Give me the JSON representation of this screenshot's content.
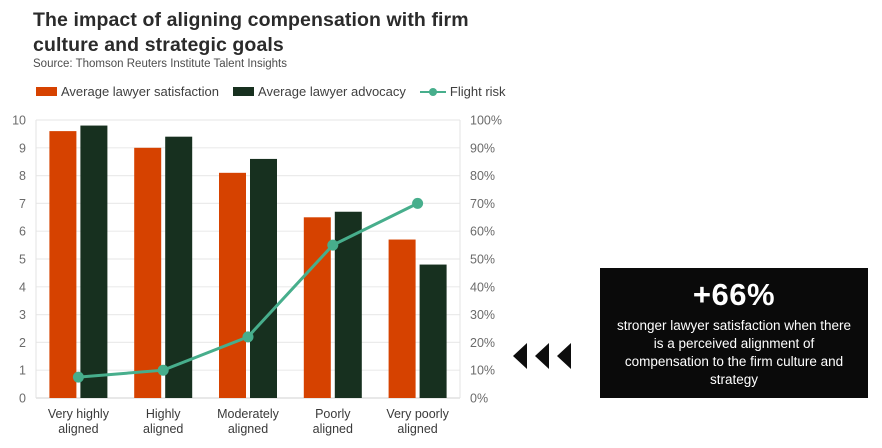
{
  "header": {
    "title": "The impact of aligning compensation with firm culture and strategic goals",
    "source": "Source: Thomson Reuters Institute Talent Insights"
  },
  "legend": [
    {
      "label": "Average lawyer satisfaction",
      "color": "#d64200",
      "marker": "rect"
    },
    {
      "label": "Average lawyer advocacy",
      "color": "#17301f",
      "marker": "rect"
    },
    {
      "label": "Flight risk",
      "color": "#47ae8c",
      "marker": "line-dot"
    }
  ],
  "chart_data": {
    "type": "bar",
    "categories": [
      [
        "Very highly",
        "aligned"
      ],
      [
        "Highly",
        "aligned"
      ],
      [
        "Moderately",
        "aligned"
      ],
      [
        "Poorly",
        "aligned"
      ],
      [
        "Very poorly",
        "aligned"
      ]
    ],
    "series": [
      {
        "name": "Average lawyer satisfaction",
        "type": "bar",
        "axis": "left",
        "color": "#d64200",
        "values": [
          9.6,
          9.0,
          8.1,
          6.5,
          5.7
        ]
      },
      {
        "name": "Average lawyer advocacy",
        "type": "bar",
        "axis": "left",
        "color": "#17301f",
        "values": [
          9.8,
          9.4,
          8.6,
          6.7,
          4.8
        ]
      },
      {
        "name": "Flight risk",
        "type": "line",
        "axis": "right",
        "color": "#47ae8c",
        "values": [
          7.5,
          10,
          22,
          55,
          70
        ]
      }
    ],
    "left_axis": {
      "label": "",
      "min": 0,
      "max": 10,
      "step": 1,
      "ticks": [
        "0",
        "1",
        "2",
        "3",
        "4",
        "5",
        "6",
        "7",
        "8",
        "9",
        "10"
      ]
    },
    "right_axis": {
      "label": "",
      "min": 0,
      "max": 100,
      "step": 10,
      "ticks": [
        "0%",
        "10%",
        "20%",
        "30%",
        "40%",
        "50%",
        "60%",
        "70%",
        "80%",
        "90%",
        "100%"
      ]
    },
    "grid": true,
    "legend_position": "top",
    "colors": {
      "gridline": "#ebebeb",
      "baseline": "#d9d9d9",
      "plot_edge": "#e3e3e3"
    }
  },
  "callout": {
    "headline": "+66%",
    "body": "stronger lawyer satisfaction when there is a perceived alignment of compensation to the firm culture and strategy",
    "background": "#0a0a0a",
    "text_color": "#ffffff"
  }
}
